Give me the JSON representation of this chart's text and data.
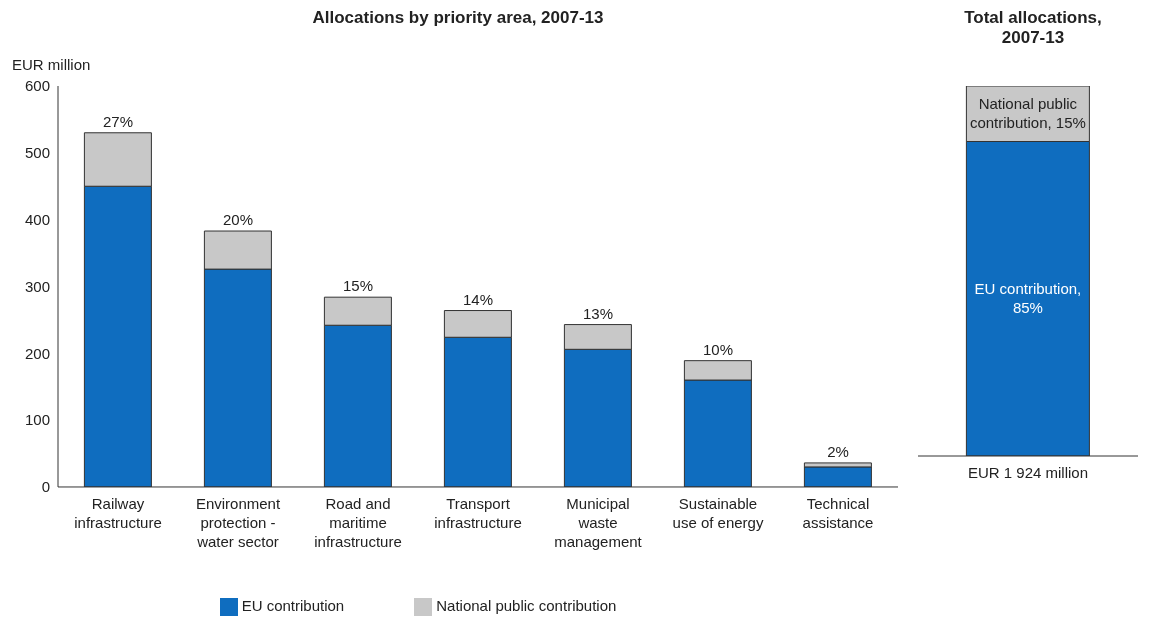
{
  "chart_data": [
    {
      "type": "bar",
      "title": "Allocations by priority area, 2007-13",
      "ylabel": "EUR million",
      "categories": [
        "Railway infrastructure",
        "Environment protection - water sector",
        "Road and maritime infrastructure",
        "Transport infrastructure",
        "Municipal waste management",
        "Sustainable use of energy",
        "Technical assistance"
      ],
      "series": [
        {
          "name": "EU contribution",
          "color": "#0f6dbf",
          "values": [
            450,
            326,
            242,
            224,
            206,
            160,
            30
          ]
        },
        {
          "name": "National public contribution",
          "color": "#c8c8c8",
          "values": [
            80,
            57,
            42,
            40,
            37,
            29,
            6
          ]
        }
      ],
      "stacked": true,
      "ylim": [
        0,
        600
      ],
      "yticks": [
        0,
        100,
        200,
        300,
        400,
        500,
        600
      ],
      "legend": "bottom",
      "annotations": [
        {
          "text": "27%",
          "x": "Railway infrastructure",
          "y": 530
        },
        {
          "text": "20%",
          "x": "Environment protection - water sector",
          "y": 383
        },
        {
          "text": "15%",
          "x": "Road and maritime infrastructure",
          "y": 284
        },
        {
          "text": "14%",
          "x": "Transport infrastructure",
          "y": 264
        },
        {
          "text": "13%",
          "x": "Municipal waste management",
          "y": 243
        },
        {
          "text": "10%",
          "x": "Sustainable use of energy",
          "y": 189
        },
        {
          "text": "2%",
          "x": "Technical assistance",
          "y": 36
        }
      ]
    },
    {
      "type": "bar",
      "title": "Total allocations, 2007-13",
      "categories": [
        "EUR 1 924 million"
      ],
      "stacked": true,
      "series": [
        {
          "color": "#0f6dbf",
          "values": [
            85
          ],
          "value_labels": [
            "EU contribution, 85%"
          ]
        },
        {
          "color": "#c8c8c8",
          "values": [
            15
          ],
          "value_labels": [
            "National public contribution, 15%"
          ]
        }
      ]
    }
  ]
}
